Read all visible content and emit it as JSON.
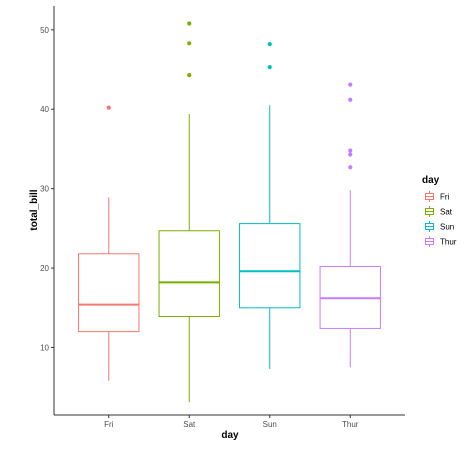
{
  "chart_data": {
    "type": "boxplot",
    "xlabel": "day",
    "ylabel": "total_bill",
    "ylim": [
      1.5,
      53
    ],
    "yticks": [
      10,
      20,
      30,
      40,
      50
    ],
    "grid": false,
    "legend": {
      "title": "day",
      "placement": "right"
    },
    "categories": [
      "Fri",
      "Sat",
      "Sun",
      "Thur"
    ],
    "series": [
      {
        "name": "Fri",
        "color": "#F8766D",
        "whisker_low": 5.8,
        "q1": 12.0,
        "median": 15.4,
        "q3": 21.8,
        "whisker_high": 28.9,
        "outliers": [
          40.2
        ]
      },
      {
        "name": "Sat",
        "color": "#7CAE00",
        "whisker_low": 3.1,
        "q1": 13.9,
        "median": 18.2,
        "q3": 24.7,
        "whisker_high": 39.4,
        "outliers": [
          44.3,
          48.3,
          50.8
        ]
      },
      {
        "name": "Sun",
        "color": "#00BFC4",
        "whisker_low": 7.3,
        "q1": 15.0,
        "median": 19.6,
        "q3": 25.6,
        "whisker_high": 40.5,
        "outliers": [
          45.3,
          48.2
        ]
      },
      {
        "name": "Thur",
        "color": "#C77CFF",
        "whisker_low": 7.5,
        "q1": 12.4,
        "median": 16.2,
        "q3": 20.2,
        "whisker_high": 29.8,
        "outliers": [
          32.7,
          34.3,
          34.8,
          41.2,
          43.1
        ]
      }
    ]
  }
}
